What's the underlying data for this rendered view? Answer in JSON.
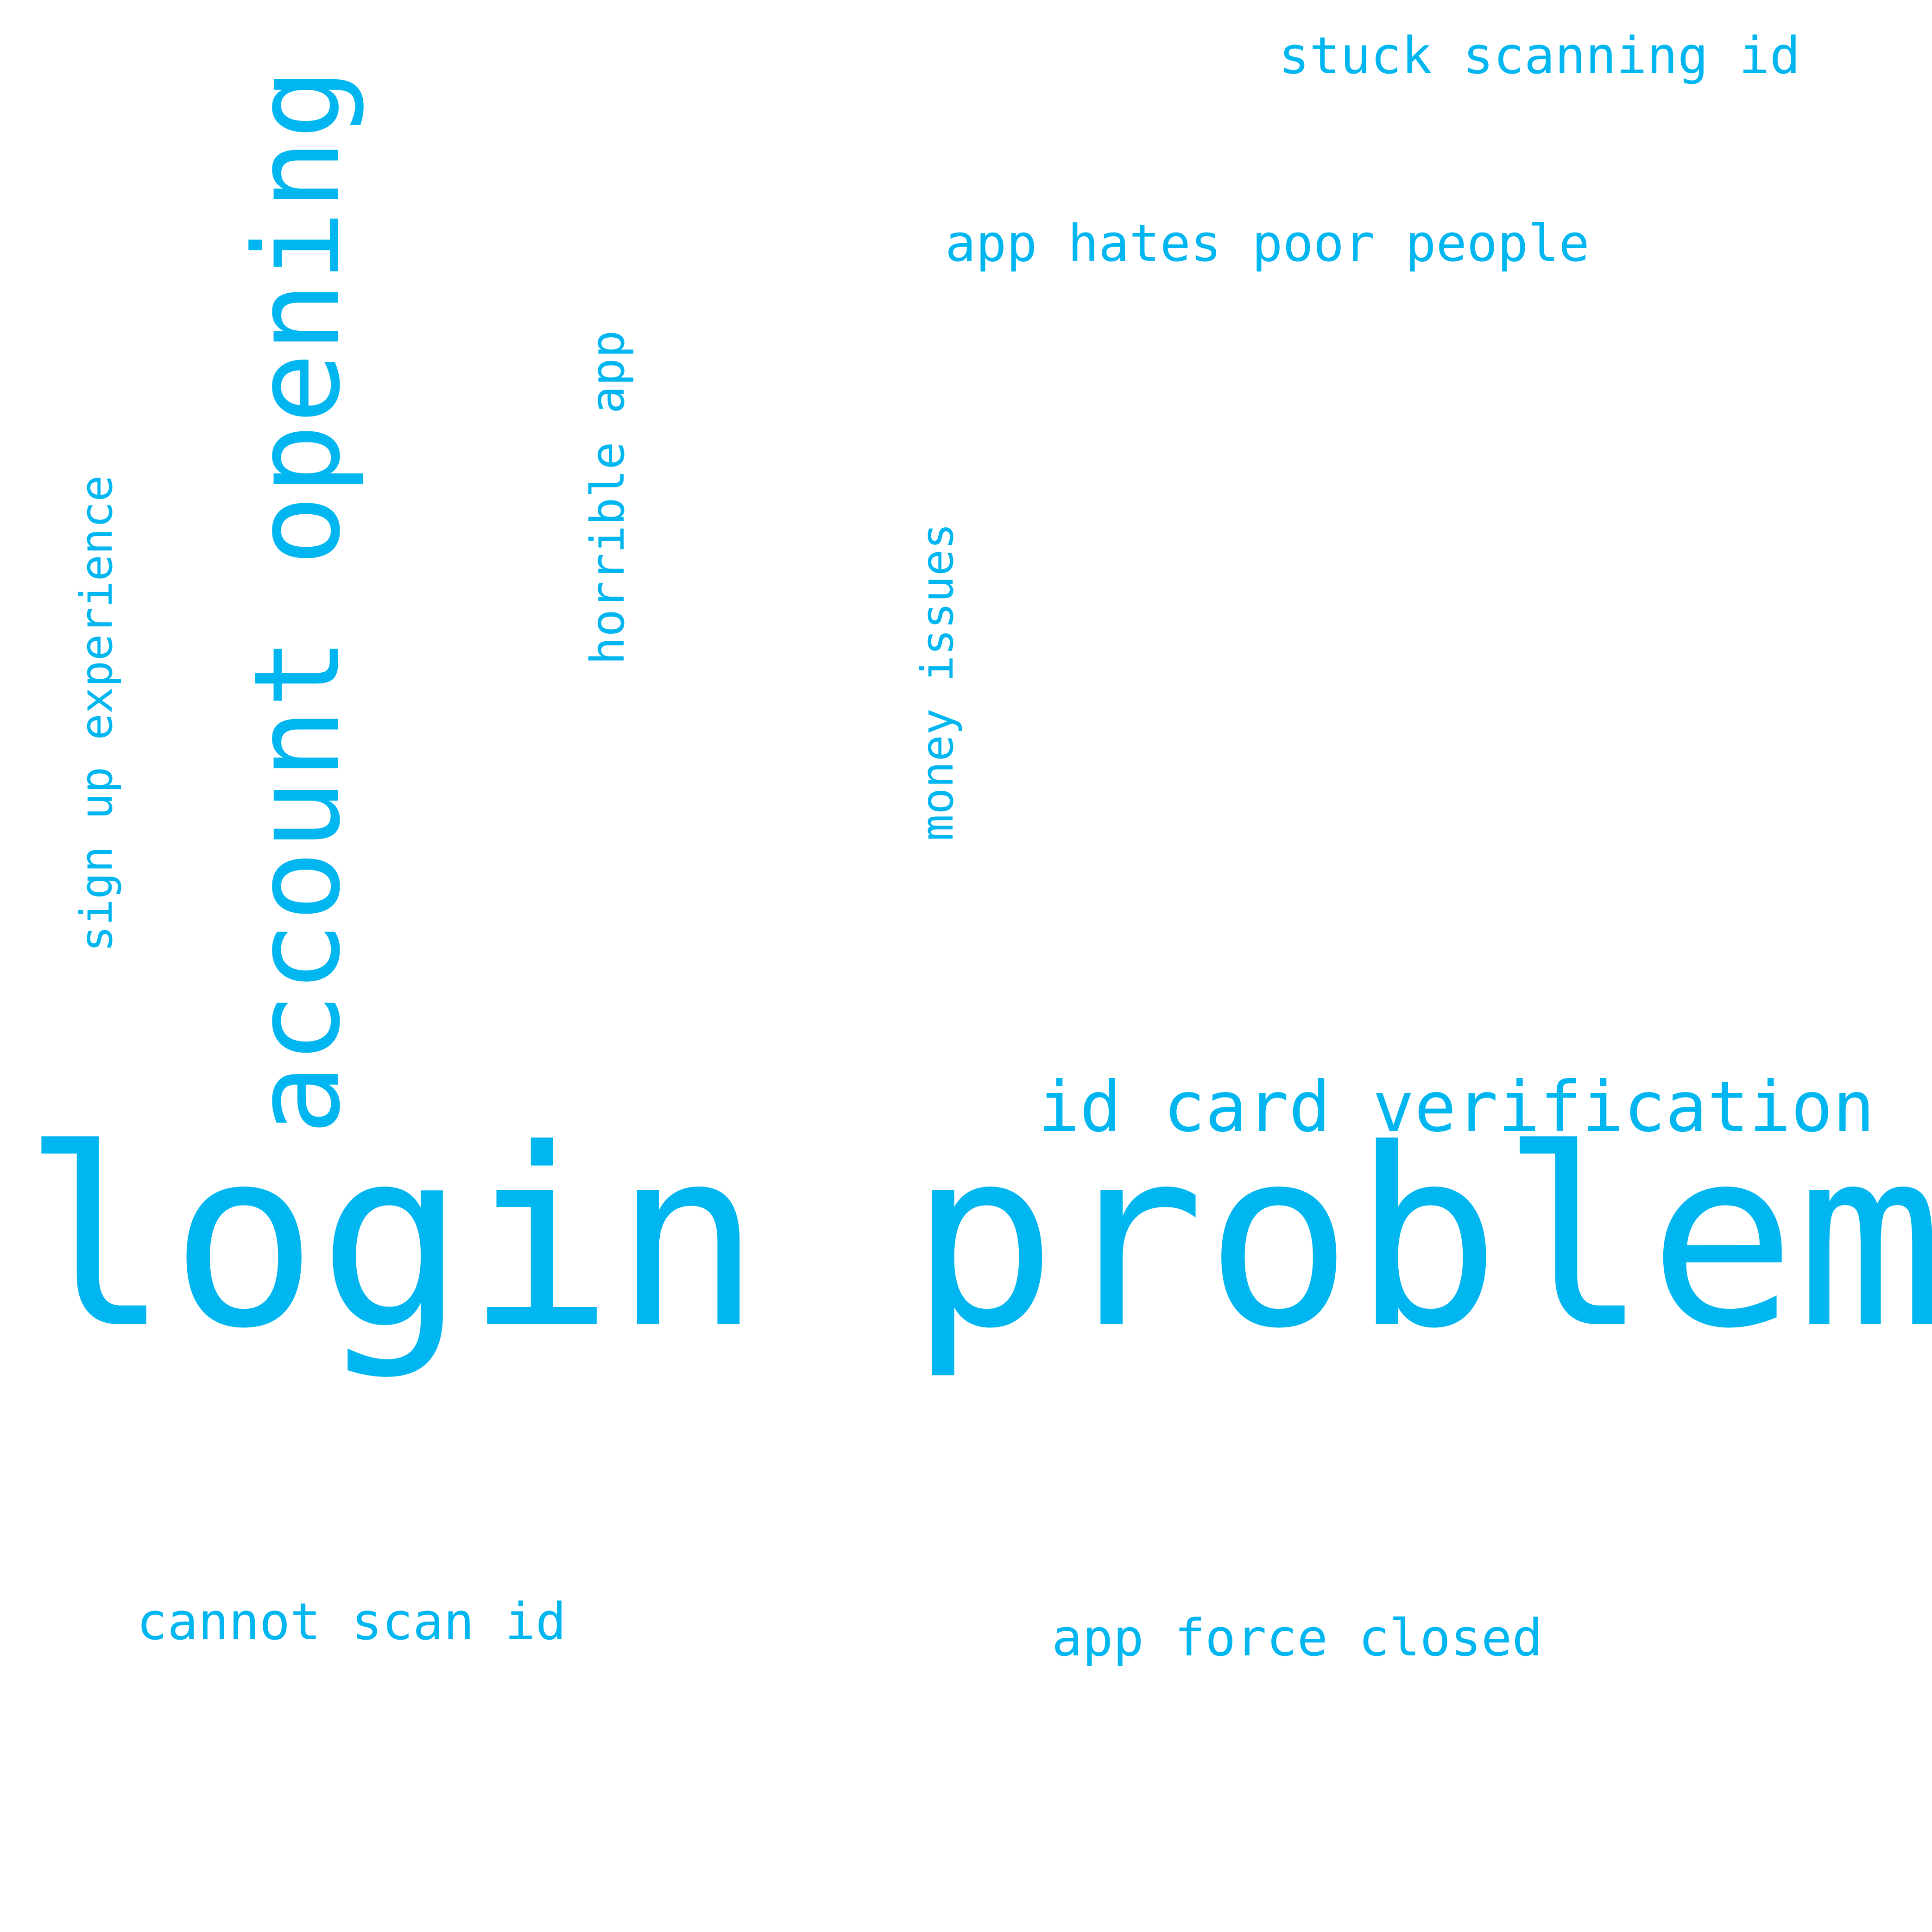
{
  "cloud": {
    "accent_color": "#00b6f0",
    "background_color": "#ffffff",
    "words": [
      {
        "text": "login problems",
        "orientation": "horizontal"
      },
      {
        "text": "account opening",
        "orientation": "vertical"
      },
      {
        "text": "id card verification",
        "orientation": "horizontal"
      },
      {
        "text": "stuck scanning id",
        "orientation": "horizontal"
      },
      {
        "text": "app hates poor people",
        "orientation": "horizontal"
      },
      {
        "text": "sign up experience",
        "orientation": "vertical"
      },
      {
        "text": "horrible app",
        "orientation": "vertical"
      },
      {
        "text": "money issues",
        "orientation": "vertical"
      },
      {
        "text": "cannot scan id",
        "orientation": "horizontal"
      },
      {
        "text": "app force closed",
        "orientation": "horizontal"
      }
    ]
  }
}
